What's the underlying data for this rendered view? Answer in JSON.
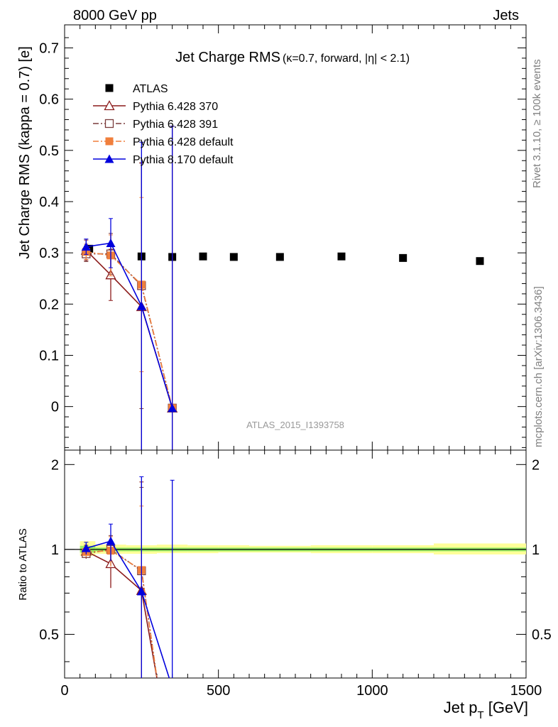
{
  "header": {
    "energy_label": "8000 GeV pp",
    "process_label": "Jets",
    "side_rivet": "Rivet 3.1.10, ≥ 100k events",
    "side_mcplots": "mcplots.cern.ch [arXiv:1306.3436]",
    "analysis_id": "ATLAS_2015_I1393758"
  },
  "chart_data": [
    {
      "type": "scatter",
      "title": "Jet Charge RMS",
      "subtitle": "(κ=0.7, forward, |η| < 2.1)",
      "xlabel": "Jet p",
      "xlabel_sub": "T",
      "xlabel_unit": " [GeV]",
      "ylabel": "Jet Charge RMS (kappa = 0.7) [e]",
      "xlim": [
        0,
        1500
      ],
      "ylim": [
        -0.085,
        0.745
      ],
      "yticks": [
        0,
        0.1,
        0.2,
        0.3,
        0.4,
        0.5,
        0.6,
        0.7
      ],
      "ytick_labels": [
        "0",
        "0.1",
        "0.2",
        "0.3",
        "0.4",
        "0.5",
        "0.6",
        "0.7"
      ],
      "xticks": [
        0,
        500,
        1000,
        1500
      ],
      "xtick_labels": [
        "0",
        "500",
        "1000",
        "1500"
      ],
      "legend_position": "top-left",
      "series": [
        {
          "name": "ATLAS",
          "color": "#000000",
          "marker": "square-filled",
          "line": "none",
          "x": [
            80,
            150,
            250,
            350,
            450,
            550,
            700,
            900,
            1100,
            1350
          ],
          "y": [
            0.308,
            0.298,
            0.293,
            0.292,
            0.293,
            0.292,
            0.292,
            0.293,
            0.29,
            0.284
          ],
          "err": [
            0.004,
            0.004,
            0.004,
            0.004,
            0.004,
            0.004,
            0.004,
            0.004,
            0.004,
            0.005
          ]
        },
        {
          "name": "Pythia 6.428 370",
          "color": "#8b1a1a",
          "marker": "triangle-open",
          "line": "solid",
          "x": [
            70,
            150,
            250,
            350
          ],
          "y": [
            0.305,
            0.257,
            0.195,
            -0.003
          ],
          "err": [
            0.02,
            0.05,
            0.28,
            0.55
          ]
        },
        {
          "name": "Pythia 6.428 391",
          "color": "#7a3b3b",
          "marker": "square-open",
          "line": "dashdot",
          "x": [
            70,
            150,
            250,
            350
          ],
          "y": [
            0.298,
            0.298,
            0.236,
            -0.003
          ],
          "err": [
            0.015,
            0.04,
            0.24,
            0.55
          ]
        },
        {
          "name": "Pythia 6.428 default",
          "color": "#f07f3c",
          "marker": "square-filled",
          "line": "dashdot",
          "x": [
            70,
            150,
            250,
            350
          ],
          "y": [
            0.302,
            0.295,
            0.238,
            -0.003
          ],
          "err": [
            0.015,
            0.04,
            0.17,
            0.55
          ]
        },
        {
          "name": "Pythia 8.170 default",
          "color": "#0000dd",
          "marker": "triangle-filled",
          "line": "solid",
          "x": [
            70,
            150,
            250,
            350
          ],
          "y": [
            0.312,
            0.319,
            0.196,
            -0.003
          ],
          "err": [
            0.015,
            0.048,
            0.32,
            0.55
          ]
        }
      ]
    },
    {
      "type": "scatter",
      "ylabel": "Ratio to ATLAS",
      "xlabel": "Jet p",
      "xlim": [
        0,
        1500
      ],
      "ylim": [
        0.35,
        2.25
      ],
      "ylog": true,
      "yticks": [
        0.5,
        1,
        2
      ],
      "ytick_labels": [
        "0.5",
        "1",
        "2"
      ],
      "band_yellow": [
        {
          "x0": 50,
          "x1": 100,
          "lo": 0.95,
          "hi": 1.07
        },
        {
          "x0": 100,
          "x1": 200,
          "lo": 0.965,
          "hi": 1.04
        },
        {
          "x0": 200,
          "x1": 300,
          "lo": 0.965,
          "hi": 1.035
        },
        {
          "x0": 300,
          "x1": 400,
          "lo": 0.97,
          "hi": 1.04
        },
        {
          "x0": 400,
          "x1": 500,
          "lo": 0.97,
          "hi": 1.035
        },
        {
          "x0": 500,
          "x1": 600,
          "lo": 0.975,
          "hi": 1.035
        },
        {
          "x0": 600,
          "x1": 800,
          "lo": 0.975,
          "hi": 1.03
        },
        {
          "x0": 800,
          "x1": 1000,
          "lo": 0.97,
          "hi": 1.035
        },
        {
          "x0": 1000,
          "x1": 1200,
          "lo": 0.97,
          "hi": 1.035
        },
        {
          "x0": 1200,
          "x1": 1500,
          "lo": 0.96,
          "hi": 1.05
        }
      ],
      "band_green": [
        {
          "x0": 50,
          "x1": 100,
          "lo": 0.975,
          "hi": 1.03
        },
        {
          "x0": 100,
          "x1": 1500,
          "lo": 0.985,
          "hi": 1.015
        }
      ],
      "series": [
        {
          "name": "Pythia 6.428 370",
          "x": [
            70,
            150,
            250,
            300
          ],
          "y": [
            0.985,
            0.89,
            0.715,
            0.33
          ],
          "err": [
            0.05,
            0.16,
            1.02,
            0
          ]
        },
        {
          "name": "Pythia 6.428 391",
          "x": [
            70,
            150,
            250,
            300
          ],
          "y": [
            0.967,
            1.0,
            0.84,
            0.33
          ],
          "err": [
            0.04,
            0.12,
            0.82,
            0
          ]
        },
        {
          "name": "Pythia 6.428 default",
          "x": [
            70,
            150,
            250,
            300
          ],
          "y": [
            0.98,
            0.99,
            0.845,
            0.33
          ],
          "err": [
            0.04,
            0.12,
            0.58,
            0
          ]
        },
        {
          "name": "Pythia 8.170 default",
          "x": [
            70,
            150,
            250,
            340
          ],
          "y": [
            1.01,
            1.07,
            0.71,
            0.33
          ],
          "err": [
            0.05,
            0.16,
            1.1,
            0
          ]
        },
        {
          "name": "Pythia 8.170 default",
          "x": [
            350
          ],
          "y": [
            null
          ],
          "err": [
            null
          ],
          "err_hi_abs": [
            1.76
          ]
        }
      ]
    }
  ]
}
